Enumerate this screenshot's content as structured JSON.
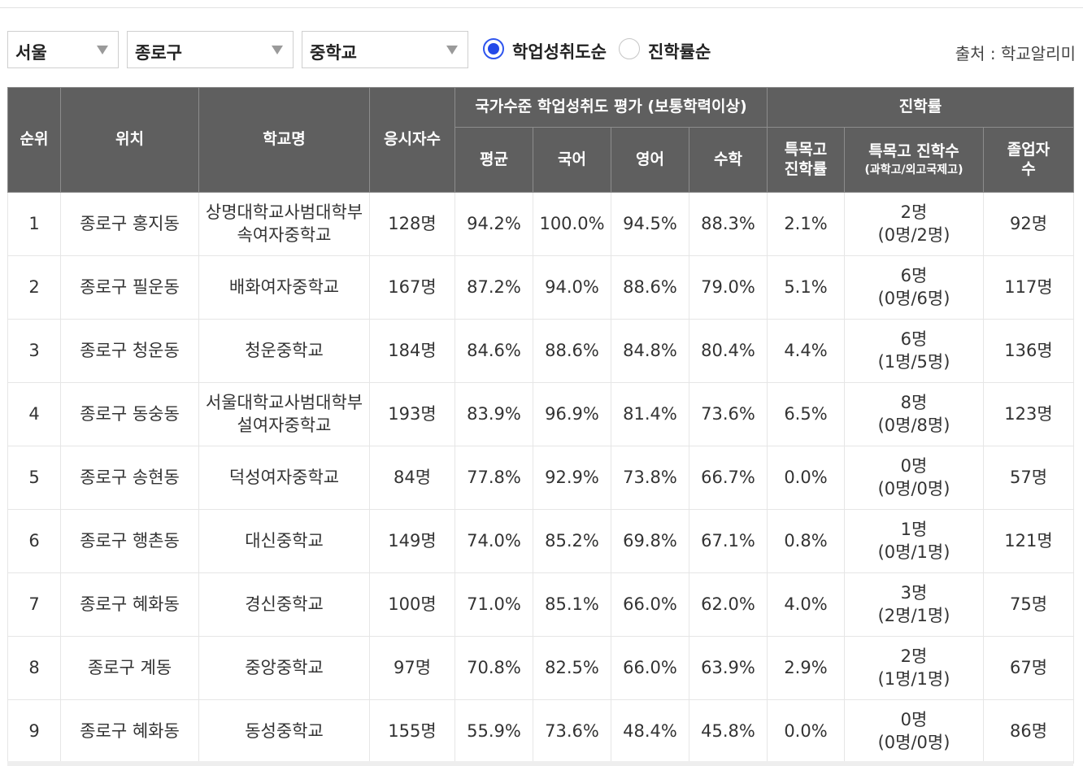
{
  "filters": {
    "region": "서울",
    "district": "종로구",
    "school_type": "중학교",
    "sort_options": [
      {
        "label": "학업성취도순",
        "checked": true
      },
      {
        "label": "진학률순",
        "checked": false
      }
    ],
    "source": "출처 : 학교알리미"
  },
  "table": {
    "headers": {
      "rank": "순위",
      "location": "위치",
      "school": "학교명",
      "test_takers": "응시자수",
      "achievement_group": "국가수준 학업성취도 평가 (보통학력이상)",
      "admission_group": "진학률",
      "avg": "평균",
      "korean": "국어",
      "english": "영어",
      "math": "수학",
      "special_rate_line1": "특목고",
      "special_rate_line2": "진학률",
      "special_count_line1": "특목고 진학수",
      "special_count_line2": "(과학고/외고국제고)",
      "graduates_line1": "졸업자",
      "graduates_line2": "수"
    },
    "rows": [
      {
        "rank": "1",
        "location": "종로구 홍지동",
        "school_line1": "상명대학교사범대학부",
        "school_line2": "속여자중학교",
        "takers": "128명",
        "avg": "94.2%",
        "korean": "100.0%",
        "english": "94.5%",
        "math": "88.3%",
        "special_rate": "2.1%",
        "special_count": "2명",
        "special_split": "(0명/2명)",
        "graduates": "92명"
      },
      {
        "rank": "2",
        "location": "종로구 필운동",
        "school_line1": "배화여자중학교",
        "school_line2": "",
        "takers": "167명",
        "avg": "87.2%",
        "korean": "94.0%",
        "english": "88.6%",
        "math": "79.0%",
        "special_rate": "5.1%",
        "special_count": "6명",
        "special_split": "(0명/6명)",
        "graduates": "117명"
      },
      {
        "rank": "3",
        "location": "종로구 청운동",
        "school_line1": "청운중학교",
        "school_line2": "",
        "takers": "184명",
        "avg": "84.6%",
        "korean": "88.6%",
        "english": "84.8%",
        "math": "80.4%",
        "special_rate": "4.4%",
        "special_count": "6명",
        "special_split": "(1명/5명)",
        "graduates": "136명"
      },
      {
        "rank": "4",
        "location": "종로구 동숭동",
        "school_line1": "서울대학교사범대학부",
        "school_line2": "설여자중학교",
        "takers": "193명",
        "avg": "83.9%",
        "korean": "96.9%",
        "english": "81.4%",
        "math": "73.6%",
        "special_rate": "6.5%",
        "special_count": "8명",
        "special_split": "(0명/8명)",
        "graduates": "123명"
      },
      {
        "rank": "5",
        "location": "종로구 송현동",
        "school_line1": "덕성여자중학교",
        "school_line2": "",
        "takers": "84명",
        "avg": "77.8%",
        "korean": "92.9%",
        "english": "73.8%",
        "math": "66.7%",
        "special_rate": "0.0%",
        "special_count": "0명",
        "special_split": "(0명/0명)",
        "graduates": "57명"
      },
      {
        "rank": "6",
        "location": "종로구 행촌동",
        "school_line1": "대신중학교",
        "school_line2": "",
        "takers": "149명",
        "avg": "74.0%",
        "korean": "85.2%",
        "english": "69.8%",
        "math": "67.1%",
        "special_rate": "0.8%",
        "special_count": "1명",
        "special_split": "(0명/1명)",
        "graduates": "121명"
      },
      {
        "rank": "7",
        "location": "종로구 혜화동",
        "school_line1": "경신중학교",
        "school_line2": "",
        "takers": "100명",
        "avg": "71.0%",
        "korean": "85.1%",
        "english": "66.0%",
        "math": "62.0%",
        "special_rate": "4.0%",
        "special_count": "3명",
        "special_split": "(2명/1명)",
        "graduates": "75명"
      },
      {
        "rank": "8",
        "location": "종로구 계동",
        "school_line1": "중앙중학교",
        "school_line2": "",
        "takers": "97명",
        "avg": "70.8%",
        "korean": "82.5%",
        "english": "66.0%",
        "math": "63.9%",
        "special_rate": "2.9%",
        "special_count": "2명",
        "special_split": "(1명/1명)",
        "graduates": "67명"
      },
      {
        "rank": "9",
        "location": "종로구 혜화동",
        "school_line1": "동성중학교",
        "school_line2": "",
        "takers": "155명",
        "avg": "55.9%",
        "korean": "73.6%",
        "english": "48.4%",
        "math": "45.8%",
        "special_rate": "0.0%",
        "special_count": "0명",
        "special_split": "(0명/0명)",
        "graduates": "86명"
      }
    ]
  }
}
